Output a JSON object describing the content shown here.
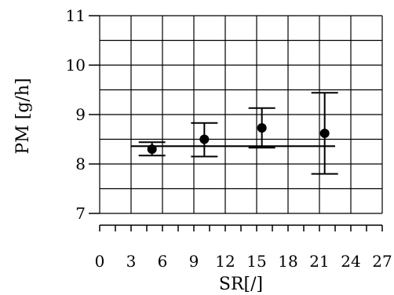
{
  "chart_data": {
    "type": "scatter",
    "xlabel": "SR[/]",
    "ylabel": "PM [g/h]",
    "xlim": [
      0,
      27
    ],
    "ylim": [
      7,
      11
    ],
    "x_ticks": [
      0,
      3,
      6,
      9,
      12,
      15,
      18,
      21,
      24,
      27
    ],
    "x_tick_labels": [
      "0",
      "3",
      "6",
      "9",
      "12",
      "15",
      "18",
      "21",
      "24",
      "27"
    ],
    "y_ticks": [
      7,
      8,
      9,
      10,
      11
    ],
    "y_tick_labels": [
      "7",
      "8",
      "9",
      "10",
      "11"
    ],
    "y_grid_step": 0.5,
    "grid": true,
    "legend": "none",
    "points": [
      {
        "x": 5.0,
        "y": 8.3,
        "err_low": 8.17,
        "err_high": 8.44
      },
      {
        "x": 10.0,
        "y": 8.5,
        "err_low": 8.15,
        "err_high": 8.83
      },
      {
        "x": 15.5,
        "y": 8.73,
        "err_low": 8.33,
        "err_high": 9.13
      },
      {
        "x": 21.5,
        "y": 8.62,
        "err_low": 7.8,
        "err_high": 9.44
      }
    ],
    "mean_line": {
      "y": 8.36,
      "x_start": 3,
      "x_end": 22.5
    }
  }
}
